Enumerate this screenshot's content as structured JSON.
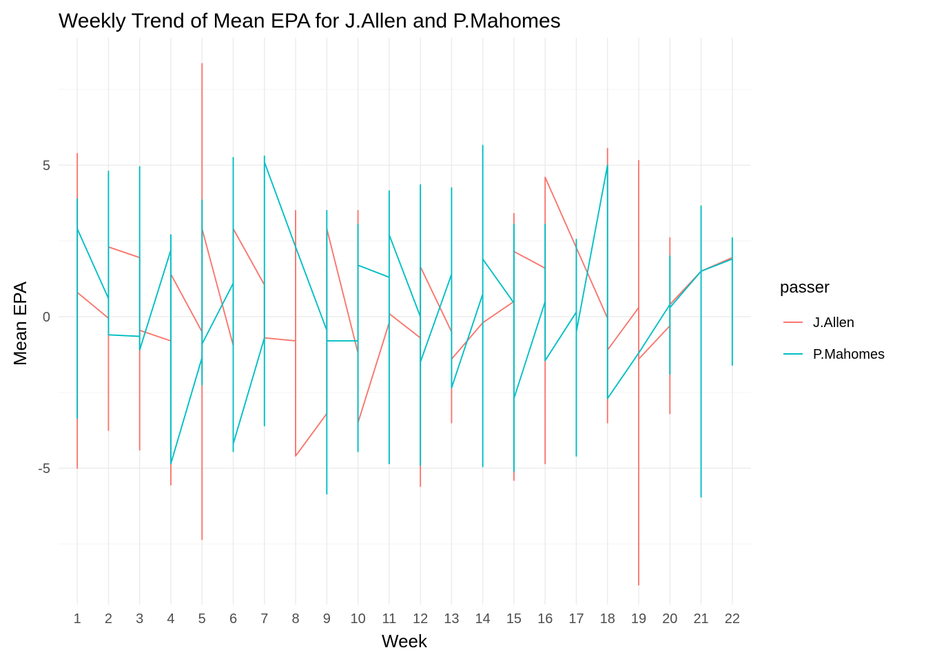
{
  "chart_data": {
    "type": "line",
    "title": "Weekly Trend of Mean EPA for J.Allen and P.Mahomes",
    "xlabel": "Week",
    "ylabel": "Mean EPA",
    "x": [
      1,
      2,
      3,
      4,
      5,
      6,
      7,
      8,
      9,
      10,
      11,
      12,
      13,
      14,
      15,
      16,
      17,
      18,
      19,
      20,
      21,
      22
    ],
    "ylim": [
      -9.5,
      9.2
    ],
    "yticks": [
      -5,
      0,
      5
    ],
    "grid": true,
    "legend": {
      "title": "passer",
      "placement": "right"
    },
    "series": [
      {
        "name": "J.Allen",
        "color": "#F8766D",
        "points": [
          [
            1,
            5.4
          ],
          [
            1,
            -5.0
          ],
          [
            1,
            0.8
          ],
          [
            2,
            -0.05
          ],
          [
            2,
            2.3
          ],
          [
            2,
            -3.75
          ],
          [
            2,
            2.3
          ],
          [
            3,
            1.95
          ],
          [
            3,
            -4.4
          ],
          [
            3,
            -0.45
          ],
          [
            4,
            -0.8
          ],
          [
            4,
            -5.55
          ],
          [
            4,
            1.4
          ],
          [
            5,
            -0.5
          ],
          [
            5,
            8.35
          ],
          [
            5,
            -7.35
          ],
          [
            5,
            2.9
          ],
          [
            6,
            -0.95
          ],
          [
            6,
            2.9
          ],
          [
            7,
            1.05
          ],
          [
            7,
            -0.7
          ],
          [
            8,
            -0.8
          ],
          [
            8,
            3.5
          ],
          [
            8,
            -4.6
          ],
          [
            9,
            -3.2
          ],
          [
            9,
            2.9
          ],
          [
            10,
            -1.2
          ],
          [
            10,
            3.5
          ],
          [
            10,
            -3.5
          ],
          [
            11,
            -0.2
          ],
          [
            11,
            0.1
          ],
          [
            12,
            -0.7
          ],
          [
            12,
            -5.6
          ],
          [
            12,
            1.65
          ],
          [
            13,
            -0.5
          ],
          [
            13,
            -3.5
          ],
          [
            13,
            -1.4
          ],
          [
            14,
            -0.2
          ],
          [
            15,
            0.5
          ],
          [
            15,
            3.4
          ],
          [
            15,
            -5.4
          ],
          [
            15,
            2.15
          ],
          [
            16,
            1.6
          ],
          [
            16,
            -4.85
          ],
          [
            16,
            4.6
          ],
          [
            18,
            -0.05
          ],
          [
            18,
            5.55
          ],
          [
            18,
            -3.5
          ],
          [
            18,
            -1.1
          ],
          [
            19,
            0.3
          ],
          [
            19,
            5.15
          ],
          [
            19,
            -8.85
          ],
          [
            19,
            -1.4
          ],
          [
            20,
            -0.3
          ],
          [
            20,
            2.6
          ],
          [
            20,
            -3.2
          ],
          [
            20,
            0.4
          ],
          [
            21,
            1.5
          ],
          [
            22,
            1.95
          ]
        ]
      },
      {
        "name": "P.Mahomes",
        "color": "#00BFC4",
        "points": [
          [
            1,
            3.9
          ],
          [
            1,
            -3.35
          ],
          [
            1,
            2.9
          ],
          [
            2,
            0.6
          ],
          [
            2,
            4.8
          ],
          [
            2,
            -0.6
          ],
          [
            3,
            -0.65
          ],
          [
            3,
            4.95
          ],
          [
            3,
            -1.1
          ],
          [
            4,
            2.2
          ],
          [
            4,
            2.7
          ],
          [
            4,
            -4.85
          ],
          [
            5,
            -1.35
          ],
          [
            5,
            3.85
          ],
          [
            5,
            -2.25
          ],
          [
            5,
            -0.9
          ],
          [
            6,
            1.1
          ],
          [
            6,
            5.25
          ],
          [
            6,
            -4.45
          ],
          [
            6,
            -4.2
          ],
          [
            7,
            -0.7
          ],
          [
            7,
            5.3
          ],
          [
            7,
            -3.6
          ],
          [
            7,
            5.1
          ],
          [
            8,
            2.3
          ],
          [
            9,
            -0.45
          ],
          [
            9,
            3.5
          ],
          [
            9,
            -5.85
          ],
          [
            9,
            -0.8
          ],
          [
            10,
            -0.8
          ],
          [
            10,
            3.05
          ],
          [
            10,
            -4.45
          ],
          [
            10,
            1.7
          ],
          [
            11,
            1.3
          ],
          [
            11,
            4.15
          ],
          [
            11,
            -4.85
          ],
          [
            11,
            2.7
          ],
          [
            12,
            0.0
          ],
          [
            12,
            4.35
          ],
          [
            12,
            -4.9
          ],
          [
            12,
            -1.5
          ],
          [
            13,
            1.4
          ],
          [
            13,
            4.25
          ],
          [
            13,
            -2.35
          ],
          [
            14,
            0.75
          ],
          [
            14,
            5.65
          ],
          [
            14,
            -4.95
          ],
          [
            14,
            1.9
          ],
          [
            15,
            0.45
          ],
          [
            15,
            3.05
          ],
          [
            15,
            -5.1
          ],
          [
            15,
            -2.7
          ],
          [
            16,
            0.5
          ],
          [
            16,
            3.05
          ],
          [
            16,
            -1.45
          ],
          [
            17,
            0.15
          ],
          [
            17,
            2.55
          ],
          [
            17,
            -4.6
          ],
          [
            17,
            -0.5
          ],
          [
            18,
            5.0
          ],
          [
            18,
            -2.7
          ],
          [
            19,
            -1.2
          ],
          [
            20,
            0.4
          ],
          [
            20,
            2.0
          ],
          [
            20,
            -1.9
          ],
          [
            20,
            0.3
          ],
          [
            21,
            1.5
          ],
          [
            21,
            3.65
          ],
          [
            21,
            -5.95
          ],
          [
            21,
            1.5
          ],
          [
            22,
            1.9
          ],
          [
            22,
            2.6
          ],
          [
            22,
            -1.6
          ],
          [
            22,
            1.9
          ]
        ]
      }
    ]
  }
}
